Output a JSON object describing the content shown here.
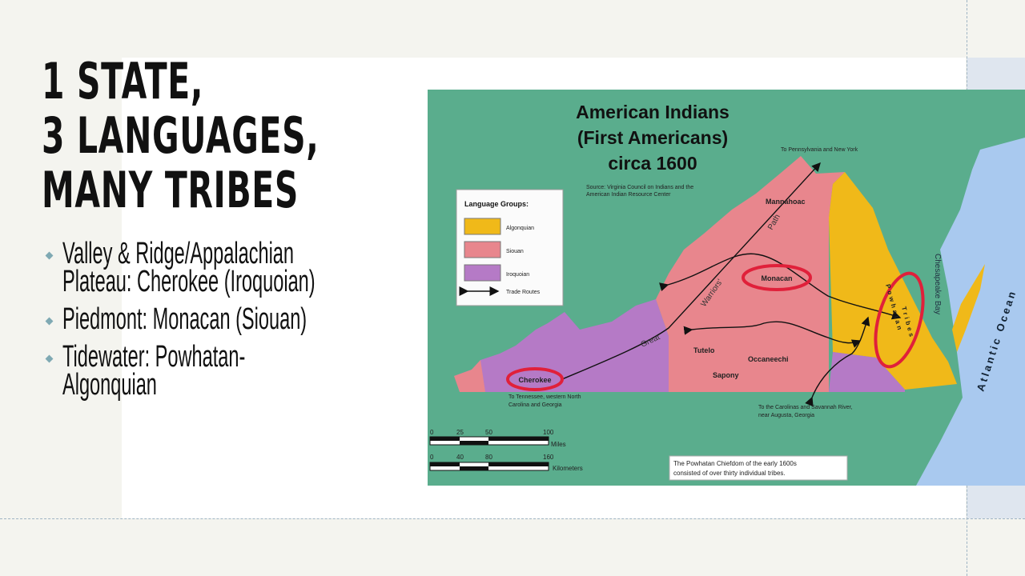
{
  "slide": {
    "title_lines": [
      "1 STATE,",
      "3 LANGUAGES,",
      "MANY TRIBES"
    ],
    "bullets": [
      [
        "Valley & Ridge/Appalachian",
        "Plateau: Cherokee (Iroquoian)"
      ],
      [
        "Piedmont: Monacan (Siouan)"
      ],
      [
        "Tidewater: Powhatan-",
        "Algonquian"
      ]
    ]
  },
  "map": {
    "title_lines": [
      "American Indians",
      "(First Americans)",
      "circa 1600"
    ],
    "source_lines": [
      "Source: Virginia Council on Indians and the",
      "American Indian Resource Center"
    ],
    "legend": {
      "heading": "Language Groups:",
      "items": [
        {
          "label": "Algonquian",
          "color": "#f0b919"
        },
        {
          "label": "Siouan",
          "color": "#e8868d"
        },
        {
          "label": "Iroquoian",
          "color": "#b57ac6"
        }
      ],
      "routes_label": "Trade Routes"
    },
    "tribes": {
      "mannahoac": "Mannahoac",
      "monacan": "Monacan",
      "tutelo": "Tutelo",
      "occaneechi": "Occaneechi",
      "sapony": "Sapony",
      "cherokee": "Cherokee",
      "powhatan": "Powhatan",
      "tribes": "Tribes"
    },
    "path_words": {
      "great": "Great",
      "warriors": "Warriors'",
      "path": "Path"
    },
    "water": {
      "bay": "Chesapeake Bay",
      "ocean": "Atlantic Ocean"
    },
    "route_notes": {
      "north": "To Pennsylvania and New York",
      "southwest": [
        "To Tennessee, western North",
        "Carolina and Georgia"
      ],
      "south": [
        "To the Carolinas and Savannah River,",
        "near Augusta, Georgia"
      ]
    },
    "scale": {
      "miles_ticks": [
        "0",
        "25",
        "50",
        "100"
      ],
      "miles_label": "Miles",
      "km_ticks": [
        "0",
        "40",
        "80",
        "160"
      ],
      "km_label": "Kilometers"
    },
    "caption_lines": [
      "The Powhatan Chiefdom of the early 1600s",
      "consisted of over thirty individual tribes."
    ],
    "colors": {
      "land": "#5aad8d",
      "water": "#a9c9ef",
      "highlight": "#e0203a"
    }
  }
}
